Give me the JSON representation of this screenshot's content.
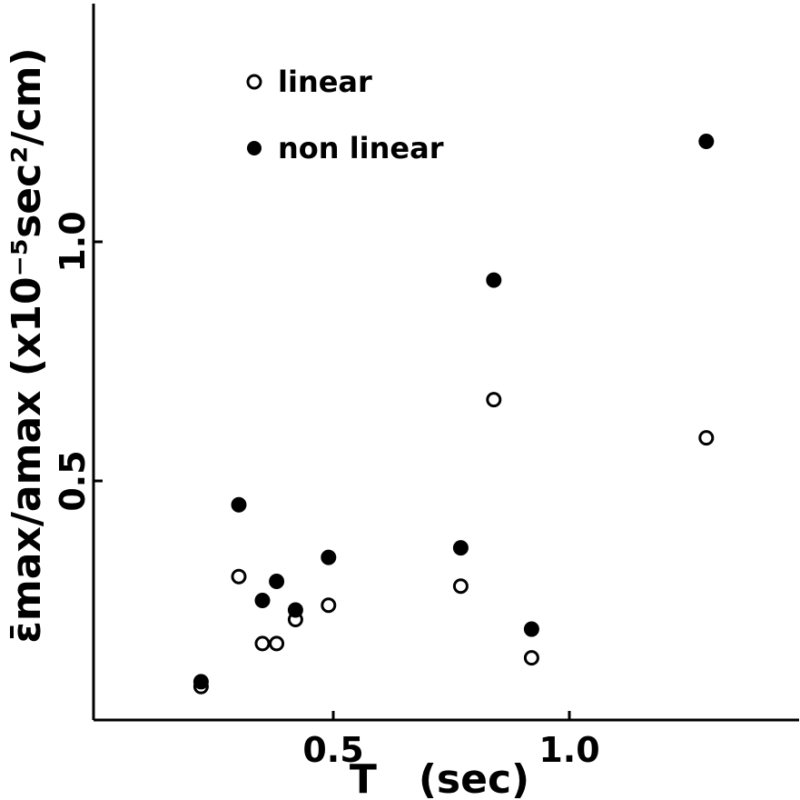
{
  "chart_data": {
    "type": "scatter",
    "xlabel": "T   (sec)",
    "ylabel": "ε̄max/amax (x10⁻⁵sec²/cm)",
    "xlim": [
      0.0,
      1.5
    ],
    "ylim": [
      0.0,
      1.5
    ],
    "x_ticks": [
      {
        "value": 0.5,
        "label": "0.5"
      },
      {
        "value": 1.0,
        "label": "1.0"
      }
    ],
    "y_ticks": [
      {
        "value": 0.5,
        "label": "0.5"
      },
      {
        "value": 1.0,
        "label": "1.0"
      }
    ],
    "grid": false,
    "legend_position": "top-left",
    "series": [
      {
        "name": "linear",
        "marker": "open-circle",
        "color": "#000000",
        "points": [
          {
            "x": 0.22,
            "y": 0.07
          },
          {
            "x": 0.3,
            "y": 0.3
          },
          {
            "x": 0.35,
            "y": 0.16
          },
          {
            "x": 0.38,
            "y": 0.16
          },
          {
            "x": 0.42,
            "y": 0.21
          },
          {
            "x": 0.49,
            "y": 0.24
          },
          {
            "x": 0.77,
            "y": 0.28
          },
          {
            "x": 0.84,
            "y": 0.67
          },
          {
            "x": 0.92,
            "y": 0.13
          },
          {
            "x": 1.29,
            "y": 0.59
          }
        ]
      },
      {
        "name": "non linear",
        "marker": "filled-circle",
        "color": "#000000",
        "points": [
          {
            "x": 0.22,
            "y": 0.08
          },
          {
            "x": 0.3,
            "y": 0.45
          },
          {
            "x": 0.35,
            "y": 0.25
          },
          {
            "x": 0.38,
            "y": 0.29
          },
          {
            "x": 0.42,
            "y": 0.23
          },
          {
            "x": 0.49,
            "y": 0.34
          },
          {
            "x": 0.77,
            "y": 0.36
          },
          {
            "x": 0.84,
            "y": 0.92
          },
          {
            "x": 0.92,
            "y": 0.19
          },
          {
            "x": 1.29,
            "y": 1.21
          }
        ]
      }
    ]
  }
}
